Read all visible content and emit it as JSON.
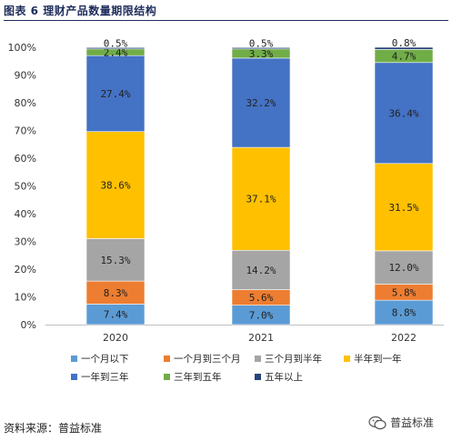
{
  "title": "图表 6  理财产品数量期限结构",
  "source": "资料来源：普益标准",
  "watermark": {
    "text": "普益标准",
    "icon": "wechat-icon"
  },
  "chart_data": {
    "type": "bar",
    "stacked": true,
    "categories": [
      "2020",
      "2021",
      "2022"
    ],
    "y_ticks": [
      "0%",
      "10%",
      "20%",
      "30%",
      "40%",
      "50%",
      "60%",
      "70%",
      "80%",
      "90%",
      "100%"
    ],
    "ylim": [
      0,
      100
    ],
    "legend_position": "bottom",
    "series": [
      {
        "name": "一个月以下",
        "color": "#5b9bd5",
        "values": [
          7.4,
          7.0,
          8.8
        ],
        "labels": [
          "7.4%",
          "7.0%",
          "8.8%"
        ]
      },
      {
        "name": "一个月到三个月",
        "color": "#ed7d31",
        "values": [
          8.3,
          5.6,
          5.8
        ],
        "labels": [
          "8.3%",
          "5.6%",
          "5.8%"
        ]
      },
      {
        "name": "三个月到半年",
        "color": "#a5a5a5",
        "values": [
          15.3,
          14.2,
          12.0
        ],
        "labels": [
          "15.3%",
          "14.2%",
          "12.0%"
        ]
      },
      {
        "name": "半年到一年",
        "color": "#ffc000",
        "values": [
          38.6,
          37.1,
          31.5
        ],
        "labels": [
          "38.6%",
          "37.1%",
          "31.5%"
        ]
      },
      {
        "name": "一年到三年",
        "color": "#4472c4",
        "values": [
          27.4,
          32.2,
          36.4
        ],
        "labels": [
          "27.4%",
          "32.2%",
          "36.4%"
        ]
      },
      {
        "name": "三年到五年",
        "color": "#70ad47",
        "values": [
          2.4,
          3.3,
          4.7
        ],
        "labels": [
          "2.4%",
          "3.3%",
          "4.7%"
        ]
      },
      {
        "name": "五年以上",
        "color": "#264478",
        "values": [
          0.5,
          0.5,
          0.8
        ],
        "labels": [
          "0.5%",
          "0.5%",
          "0.8%"
        ]
      }
    ]
  }
}
